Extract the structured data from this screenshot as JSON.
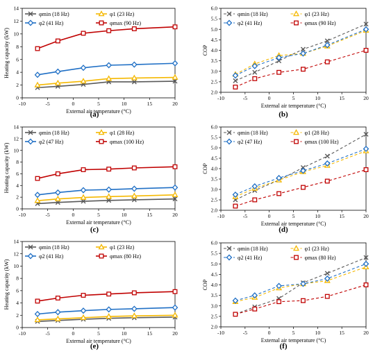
{
  "chart_data": [
    {
      "id": "a",
      "panel_label": "(a)",
      "type": "line",
      "xlabel": "External air temperature (°C)",
      "ylabel": "Heating capacity (kW)",
      "xlim": [
        -10,
        20
      ],
      "xticks": [
        -10,
        -5,
        0,
        5,
        10,
        15,
        20
      ],
      "ylim": [
        0,
        14
      ],
      "yticks": [
        0,
        2,
        4,
        6,
        8,
        10,
        12,
        14
      ],
      "ydec": 0,
      "grid": false,
      "legend_position": "top-left",
      "x": [
        -7,
        -3,
        2,
        7,
        12,
        20
      ],
      "series": [
        {
          "name": "φmin (18 Hz)",
          "marker": "x",
          "color": "#595959",
          "values": [
            1.6,
            1.8,
            2.1,
            2.5,
            2.5,
            2.6
          ]
        },
        {
          "name": "φ1 (23 Hz)",
          "marker": "triangle",
          "color": "#f5b800",
          "values": [
            2.0,
            2.3,
            2.6,
            3.0,
            3.1,
            3.2
          ]
        },
        {
          "name": "φ2 (41 Hz)",
          "marker": "diamond",
          "color": "#1f6fc5",
          "values": [
            3.6,
            4.1,
            4.7,
            5.1,
            5.2,
            5.4
          ]
        },
        {
          "name": "φmax (90 Hz)",
          "marker": "square",
          "color": "#c00000",
          "values": [
            7.7,
            8.9,
            10.1,
            10.5,
            10.8,
            11.1
          ]
        }
      ]
    },
    {
      "id": "b",
      "panel_label": "(b)",
      "type": "line",
      "xlabel": "External air temperature (°C)",
      "ylabel": "COP",
      "xlim": [
        -10,
        20
      ],
      "xticks": [
        -10,
        -5,
        0,
        5,
        10,
        15,
        20
      ],
      "ylim": [
        2.0,
        6.0
      ],
      "yticks": [
        2.0,
        2.5,
        3.0,
        3.5,
        4.0,
        4.5,
        5.0,
        5.5,
        6.0
      ],
      "ydec": 1,
      "grid": false,
      "legend_position": "top-left",
      "x": [
        -7,
        -3,
        2,
        7,
        12,
        20
      ],
      "series": [
        {
          "name": "φmin (18 Hz)",
          "marker": "x",
          "color": "#595959",
          "values": [
            2.55,
            2.95,
            3.5,
            4.05,
            4.45,
            5.25
          ]
        },
        {
          "name": "φ1 (23 Hz)",
          "marker": "triangle",
          "color": "#f5b800",
          "values": [
            2.85,
            3.35,
            3.75,
            3.85,
            4.2,
            4.95
          ]
        },
        {
          "name": "φ2 (41 Hz)",
          "marker": "diamond",
          "color": "#1f6fc5",
          "values": [
            2.8,
            3.25,
            3.65,
            3.85,
            4.25,
            5.0
          ]
        },
        {
          "name": "φmax (90 Hz)",
          "marker": "square",
          "color": "#c00000",
          "values": [
            2.25,
            2.65,
            2.95,
            3.1,
            3.45,
            4.0
          ]
        }
      ]
    },
    {
      "id": "c",
      "panel_label": "(c)",
      "type": "line",
      "xlabel": "External air temperature (°C)",
      "ylabel": "Heating capacity (kW)",
      "xlim": [
        -10,
        20
      ],
      "xticks": [
        -10,
        -5,
        0,
        5,
        10,
        15,
        20
      ],
      "ylim": [
        0,
        14
      ],
      "yticks": [
        0,
        2,
        4,
        6,
        8,
        10,
        12,
        14
      ],
      "ydec": 0,
      "grid": false,
      "legend_position": "top-left",
      "x": [
        -7,
        -3,
        2,
        7,
        12,
        20
      ],
      "series": [
        {
          "name": "φmin (18 Hz)",
          "marker": "x",
          "color": "#595959",
          "values": [
            0.9,
            1.1,
            1.3,
            1.45,
            1.55,
            1.7
          ]
        },
        {
          "name": "φ1 (28 Hz)",
          "marker": "triangle",
          "color": "#f5b800",
          "values": [
            1.4,
            1.7,
            1.95,
            2.1,
            2.2,
            2.4
          ]
        },
        {
          "name": "φ2 (47 Hz)",
          "marker": "diamond",
          "color": "#1f6fc5",
          "values": [
            2.4,
            2.8,
            3.2,
            3.3,
            3.45,
            3.65
          ]
        },
        {
          "name": "φmax (100 Hz)",
          "marker": "square",
          "color": "#c00000",
          "values": [
            5.2,
            6.0,
            6.7,
            6.8,
            7.0,
            7.2
          ]
        }
      ]
    },
    {
      "id": "d",
      "panel_label": "(d)",
      "type": "line",
      "xlabel": "External air temperature (°C)",
      "ylabel": "COP",
      "xlim": [
        -10,
        20
      ],
      "xticks": [
        -10,
        -5,
        0,
        5,
        10,
        15,
        20
      ],
      "ylim": [
        2.0,
        6.0
      ],
      "yticks": [
        2.0,
        2.5,
        3.0,
        3.5,
        4.0,
        4.5,
        5.0,
        5.5,
        6.0
      ],
      "ydec": 1,
      "grid": false,
      "legend_position": "top-left",
      "x": [
        -7,
        -3,
        2,
        7,
        12,
        20
      ],
      "series": [
        {
          "name": "φmin (18 Hz)",
          "marker": "x",
          "color": "#595959",
          "values": [
            2.5,
            2.95,
            3.45,
            4.05,
            4.6,
            5.65
          ]
        },
        {
          "name": "φ1 (28 Hz)",
          "marker": "triangle",
          "color": "#f5b800",
          "values": [
            2.65,
            3.05,
            3.45,
            3.85,
            4.15,
            4.85
          ]
        },
        {
          "name": "φ2 (47 Hz)",
          "marker": "diamond",
          "color": "#1f6fc5",
          "values": [
            2.75,
            3.15,
            3.55,
            3.9,
            4.25,
            4.95
          ]
        },
        {
          "name": "φmax (100 Hz)",
          "marker": "square",
          "color": "#c00000",
          "values": [
            2.2,
            2.5,
            2.8,
            3.1,
            3.4,
            3.95
          ]
        }
      ]
    },
    {
      "id": "e",
      "panel_label": "(e)",
      "type": "line",
      "xlabel": "External air temperature (°C)",
      "ylabel": "Heating capacity (kW)",
      "xlim": [
        -10,
        20
      ],
      "xticks": [
        -10,
        -5,
        0,
        5,
        10,
        15,
        20
      ],
      "ylim": [
        0,
        14
      ],
      "yticks": [
        0,
        2,
        4,
        6,
        8,
        10,
        12,
        14
      ],
      "ydec": 0,
      "grid": false,
      "legend_position": "top-left",
      "x": [
        -7,
        -3,
        2,
        7,
        12,
        20
      ],
      "series": [
        {
          "name": "φmin (18 Hz)",
          "marker": "x",
          "color": "#595959",
          "values": [
            1.0,
            1.15,
            1.35,
            1.5,
            1.6,
            1.7
          ]
        },
        {
          "name": "φ1 (23 Hz)",
          "marker": "triangle",
          "color": "#f5b800",
          "values": [
            1.25,
            1.4,
            1.6,
            1.8,
            1.9,
            2.0
          ]
        },
        {
          "name": "φ2 (41 Hz)",
          "marker": "diamond",
          "color": "#1f6fc5",
          "values": [
            2.2,
            2.5,
            2.75,
            2.95,
            3.05,
            3.25
          ]
        },
        {
          "name": "φmax (80 Hz)",
          "marker": "square",
          "color": "#c00000",
          "values": [
            4.3,
            4.8,
            5.25,
            5.45,
            5.65,
            5.85
          ]
        }
      ]
    },
    {
      "id": "f",
      "panel_label": "(f)",
      "type": "line",
      "xlabel": "External air temperature (°C)",
      "ylabel": "COP",
      "xlim": [
        -10,
        20
      ],
      "xticks": [
        -10,
        -5,
        0,
        5,
        10,
        15,
        20
      ],
      "ylim": [
        2.0,
        6.0
      ],
      "yticks": [
        2.0,
        2.5,
        3.0,
        3.5,
        4.0,
        4.5,
        5.0,
        5.5,
        6.0
      ],
      "ydec": 1,
      "grid": false,
      "legend_position": "top-left",
      "x": [
        -7,
        -3,
        2,
        7,
        12,
        20
      ],
      "series": [
        {
          "name": "φmin (18 Hz)",
          "marker": "x",
          "color": "#595959",
          "values": [
            2.6,
            2.95,
            3.35,
            4.1,
            4.55,
            5.3
          ]
        },
        {
          "name": "φ1 (23 Hz)",
          "marker": "triangle",
          "color": "#f5b800",
          "values": [
            3.2,
            3.4,
            3.85,
            4.05,
            4.2,
            4.85
          ]
        },
        {
          "name": "φ2 (41 Hz)",
          "marker": "diamond",
          "color": "#1f6fc5",
          "values": [
            3.25,
            3.5,
            3.95,
            4.05,
            4.3,
            5.0
          ]
        },
        {
          "name": "φmax (80 Hz)",
          "marker": "square",
          "color": "#c00000",
          "values": [
            2.6,
            2.85,
            3.2,
            3.25,
            3.45,
            4.0
          ]
        }
      ]
    }
  ]
}
